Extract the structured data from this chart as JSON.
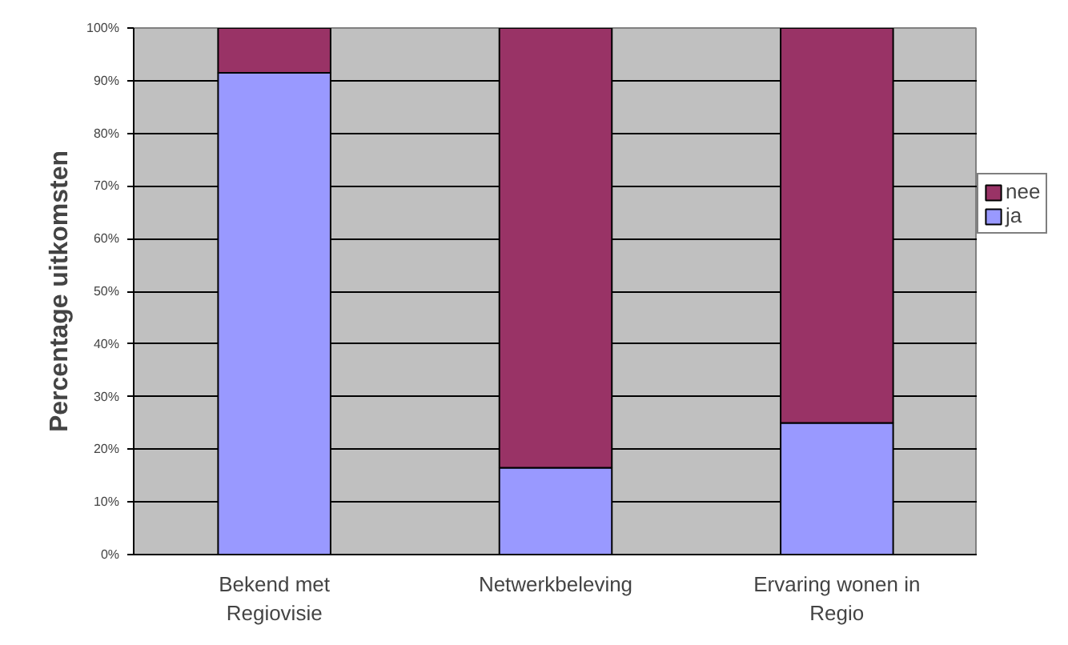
{
  "chart_data": {
    "type": "bar",
    "stacked": true,
    "ylabel": "Percentage uitkomsten",
    "categories": [
      "Bekend met Regiovisie",
      "Netwerkbeleving",
      "Ervaring wonen in Regio"
    ],
    "series": [
      {
        "name": "ja",
        "color": "#9999ff",
        "values": [
          91.5,
          16.5,
          25
        ]
      },
      {
        "name": "nee",
        "color": "#993366",
        "values": [
          8.5,
          83.5,
          75
        ]
      }
    ],
    "ylim": [
      0,
      100
    ],
    "yticks": [
      {
        "value": 0,
        "label": "0%"
      },
      {
        "value": 10,
        "label": "10%"
      },
      {
        "value": 20,
        "label": "20%"
      },
      {
        "value": 30,
        "label": "30%"
      },
      {
        "value": 40,
        "label": "40%"
      },
      {
        "value": 50,
        "label": "50%"
      },
      {
        "value": 60,
        "label": "60%"
      },
      {
        "value": 70,
        "label": "70%"
      },
      {
        "value": 80,
        "label": "80%"
      },
      {
        "value": 90,
        "label": "90%"
      },
      {
        "value": 100,
        "label": "100%"
      }
    ],
    "grid": "y",
    "legend": "right"
  }
}
